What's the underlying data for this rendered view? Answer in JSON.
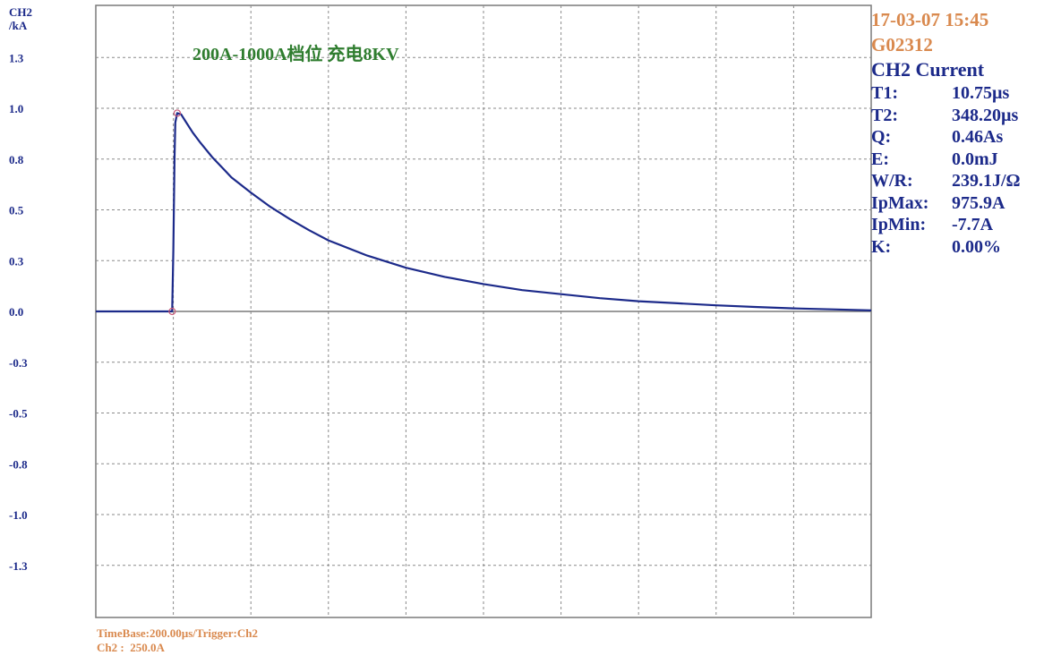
{
  "y_axis_label": {
    "line1": "CH2",
    "line2": "/kA"
  },
  "annotation": "200A-1000A档位 充电8KV",
  "info_panel": {
    "timestamp": "17-03-07 15:45",
    "device_id": "G02312",
    "channel_title": "CH2 Current",
    "measurements": [
      {
        "key": "T1:",
        "value": "10.75µs"
      },
      {
        "key": "T2:",
        "value": "348.20µs"
      },
      {
        "key": "Q:",
        "value": "0.46As"
      },
      {
        "key": "E:",
        "value": "0.0mJ"
      },
      {
        "key": "W/R:",
        "value": "239.1J/Ω"
      },
      {
        "key": "IpMax:",
        "value": "975.9A"
      },
      {
        "key": "IpMin:",
        "value": "-7.7A"
      },
      {
        "key": "K:",
        "value": "0.00%"
      }
    ]
  },
  "footer": {
    "line1": "TimeBase:200.00µs/Trigger:Ch2",
    "line2": "Ch2 :  250.0A"
  },
  "colors": {
    "trace": "#1c2a8a",
    "grid": "#8a8a8a",
    "annotation": "#2f7d2f",
    "accent_orange": "#d9894e"
  },
  "chart_data": {
    "type": "line",
    "title": "",
    "xlabel": "",
    "ylabel": "CH2 /kA",
    "y_tick_labels": [
      "1.3",
      "1.0",
      "0.8",
      "0.5",
      "0.3",
      "0.0",
      "-0.3",
      "-0.5",
      "-0.8",
      "-1.0",
      "-1.3"
    ],
    "y_tick_values": [
      1.25,
      1.0,
      0.75,
      0.5,
      0.25,
      0.0,
      -0.25,
      -0.5,
      -0.75,
      -1.0,
      -1.25
    ],
    "ylim": [
      -1.5,
      1.5
    ],
    "xlim": [
      0,
      2000
    ],
    "x_unit": "µs",
    "grid": true,
    "series": [
      {
        "x": [
          0,
          100,
          190,
          197,
          200,
          203,
          205,
          210,
          220,
          230,
          250,
          270,
          300,
          350,
          400,
          450,
          500,
          550,
          600,
          700,
          800,
          900,
          1000,
          1100,
          1200,
          1300,
          1400,
          1500,
          1600,
          1700,
          1800,
          1900,
          2000
        ],
        "y": [
          0.0,
          0.0,
          0.0,
          0.0,
          0.3,
          0.75,
          0.93,
          0.976,
          0.97,
          0.94,
          0.88,
          0.83,
          0.76,
          0.66,
          0.585,
          0.515,
          0.455,
          0.4,
          0.35,
          0.275,
          0.215,
          0.17,
          0.135,
          0.105,
          0.085,
          0.065,
          0.05,
          0.04,
          0.03,
          0.022,
          0.015,
          0.01,
          0.005
        ]
      }
    ],
    "markers": [
      {
        "x": 197,
        "y": 0.0
      },
      {
        "x": 210,
        "y": 0.976
      }
    ]
  }
}
